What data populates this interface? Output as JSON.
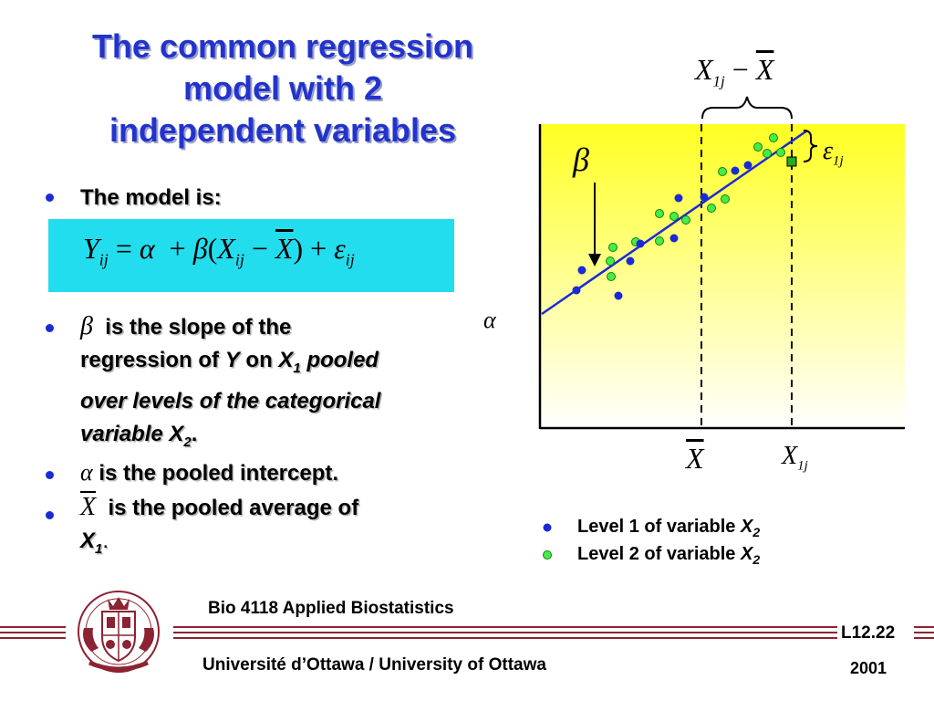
{
  "slide": {
    "title_lines": [
      "The common regression",
      "model with 2",
      "independent variables"
    ],
    "bullets": {
      "b1": "The model is:",
      "b2_line1": "is the slope of the",
      "b2_line2_pre": "regression of",
      "b2_line2_Y": "Y",
      "b2_line2_on": "on",
      "b2_line2_X": "X",
      "b2_line2_sub": "1",
      "b2_line2_post": "pooled",
      "b2_line3": "over levels of the categorical",
      "b2_line4_pre": "variable X",
      "b2_line4_sub": "2",
      "b2_line4_post": ".",
      "b3": "is the pooled intercept.",
      "b4_line1": "is the pooled average of",
      "b4_line2_X": "X",
      "b4_line2_sub": "1",
      "b4_line2_post": "."
    },
    "equation": {
      "Y": "Y",
      "Y_sub": "ij",
      "eq": "=",
      "alpha": "α",
      "plus1": "+",
      "beta": "β",
      "lparen": "(",
      "X": "X",
      "X_sub": "ij",
      "minus": "−",
      "Xbar": "X",
      "rparen": ")",
      "plus2": "+",
      "eps": "ε",
      "eps_sub": "ij"
    },
    "symbols": {
      "beta": "β",
      "alpha": "α",
      "xbar": "X"
    }
  },
  "figure": {
    "top_label": {
      "X": "X",
      "sub": "1j",
      "minus": "−",
      "Xbar": "X"
    },
    "eps_label": {
      "eps": "ε",
      "sub": "1j"
    },
    "beta_label": "β",
    "alpha_label": "α",
    "xbar_label": "X",
    "x1j_label": {
      "X": "X",
      "sub": "1j"
    },
    "colors": {
      "level1": "#1a2ad6",
      "level2": "#44dd44",
      "line": "#1a2ad6",
      "bg_top": "#ffff22",
      "bg_bottom": "#ffffff"
    }
  },
  "legend": {
    "level1": {
      "text": "Level 1 of variable",
      "var": "X",
      "sub": "2"
    },
    "level2": {
      "text": "Level 2 of variable",
      "var": "X",
      "sub": "2"
    }
  },
  "footer": {
    "course": "Bio 4118 Applied Biostatistics",
    "lecture": "L12.22",
    "university": "Université d’Ottawa / University of Ottawa",
    "year": "2001"
  }
}
